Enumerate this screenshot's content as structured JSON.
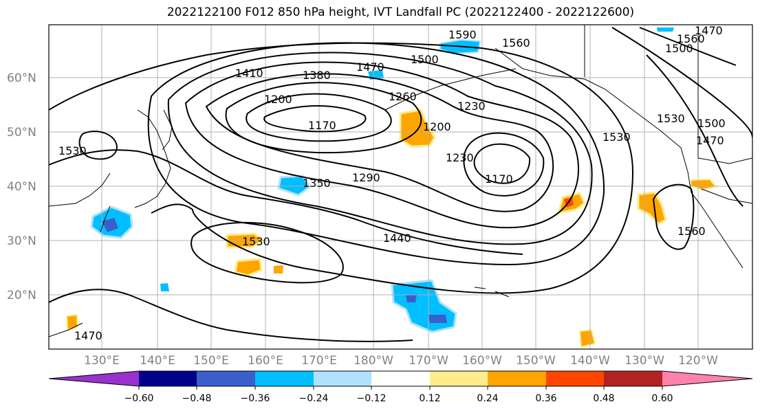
{
  "title": "2022122100 F012 850 hPa height, IVT Landfall PC (2022122400 - 2022122600)",
  "lon_labels": [
    "130°E",
    "140°E",
    "150°E",
    "160°E",
    "170°E",
    "180°W",
    "170°W",
    "160°W",
    "150°W",
    "140°W",
    "130°W",
    "120°W"
  ],
  "lat_labels": [
    "60°N",
    "50°N",
    "40°N",
    "30°N",
    "20°N"
  ],
  "contour_labels": [
    "1590",
    "1560",
    "1500",
    "1470",
    "1410",
    "1380",
    "1200",
    "1260",
    "1230",
    "1170",
    "1350",
    "1290",
    "1230",
    "1200",
    "1170",
    "1530",
    "1440",
    "1470",
    "1560",
    "1530",
    "1470",
    "1500",
    "1530",
    "1560",
    "1470",
    "1500",
    "1530"
  ],
  "colorbar": {
    "ticks": [
      "−0.60",
      "−0.48",
      "−0.36",
      "−0.24",
      "−0.12",
      "0.12",
      "0.24",
      "0.36",
      "0.48",
      "0.60"
    ],
    "colors": [
      "#9932cc",
      "#00008b",
      "#3a5fcd",
      "#00bfff",
      "#b0e2ff",
      "#ffffff",
      "#ffec8b",
      "#ffa500",
      "#ff4500",
      "#b22222",
      "#ff82ab"
    ]
  }
}
